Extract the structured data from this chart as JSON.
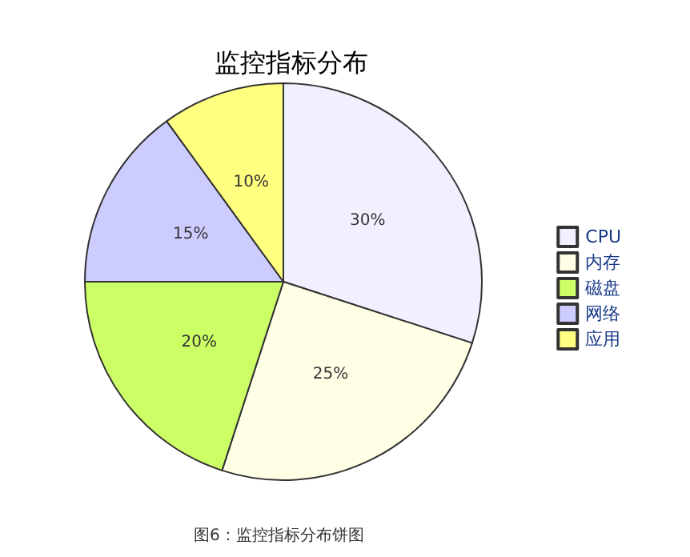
{
  "chart_data": {
    "type": "pie",
    "title": "监控指标分布",
    "categories": [
      "CPU",
      "内存",
      "磁盘",
      "网络",
      "应用"
    ],
    "values": [
      30,
      25,
      20,
      15,
      10
    ],
    "colors": [
      "#f0f0ff",
      "#ffffe6",
      "#ccff66",
      "#ccccff",
      "#ffff80"
    ],
    "value_labels": [
      "30%",
      "25%",
      "20%",
      "15%",
      "10%"
    ],
    "legend": "right",
    "annotations": [
      "图6：监控指标分布饼图"
    ]
  }
}
